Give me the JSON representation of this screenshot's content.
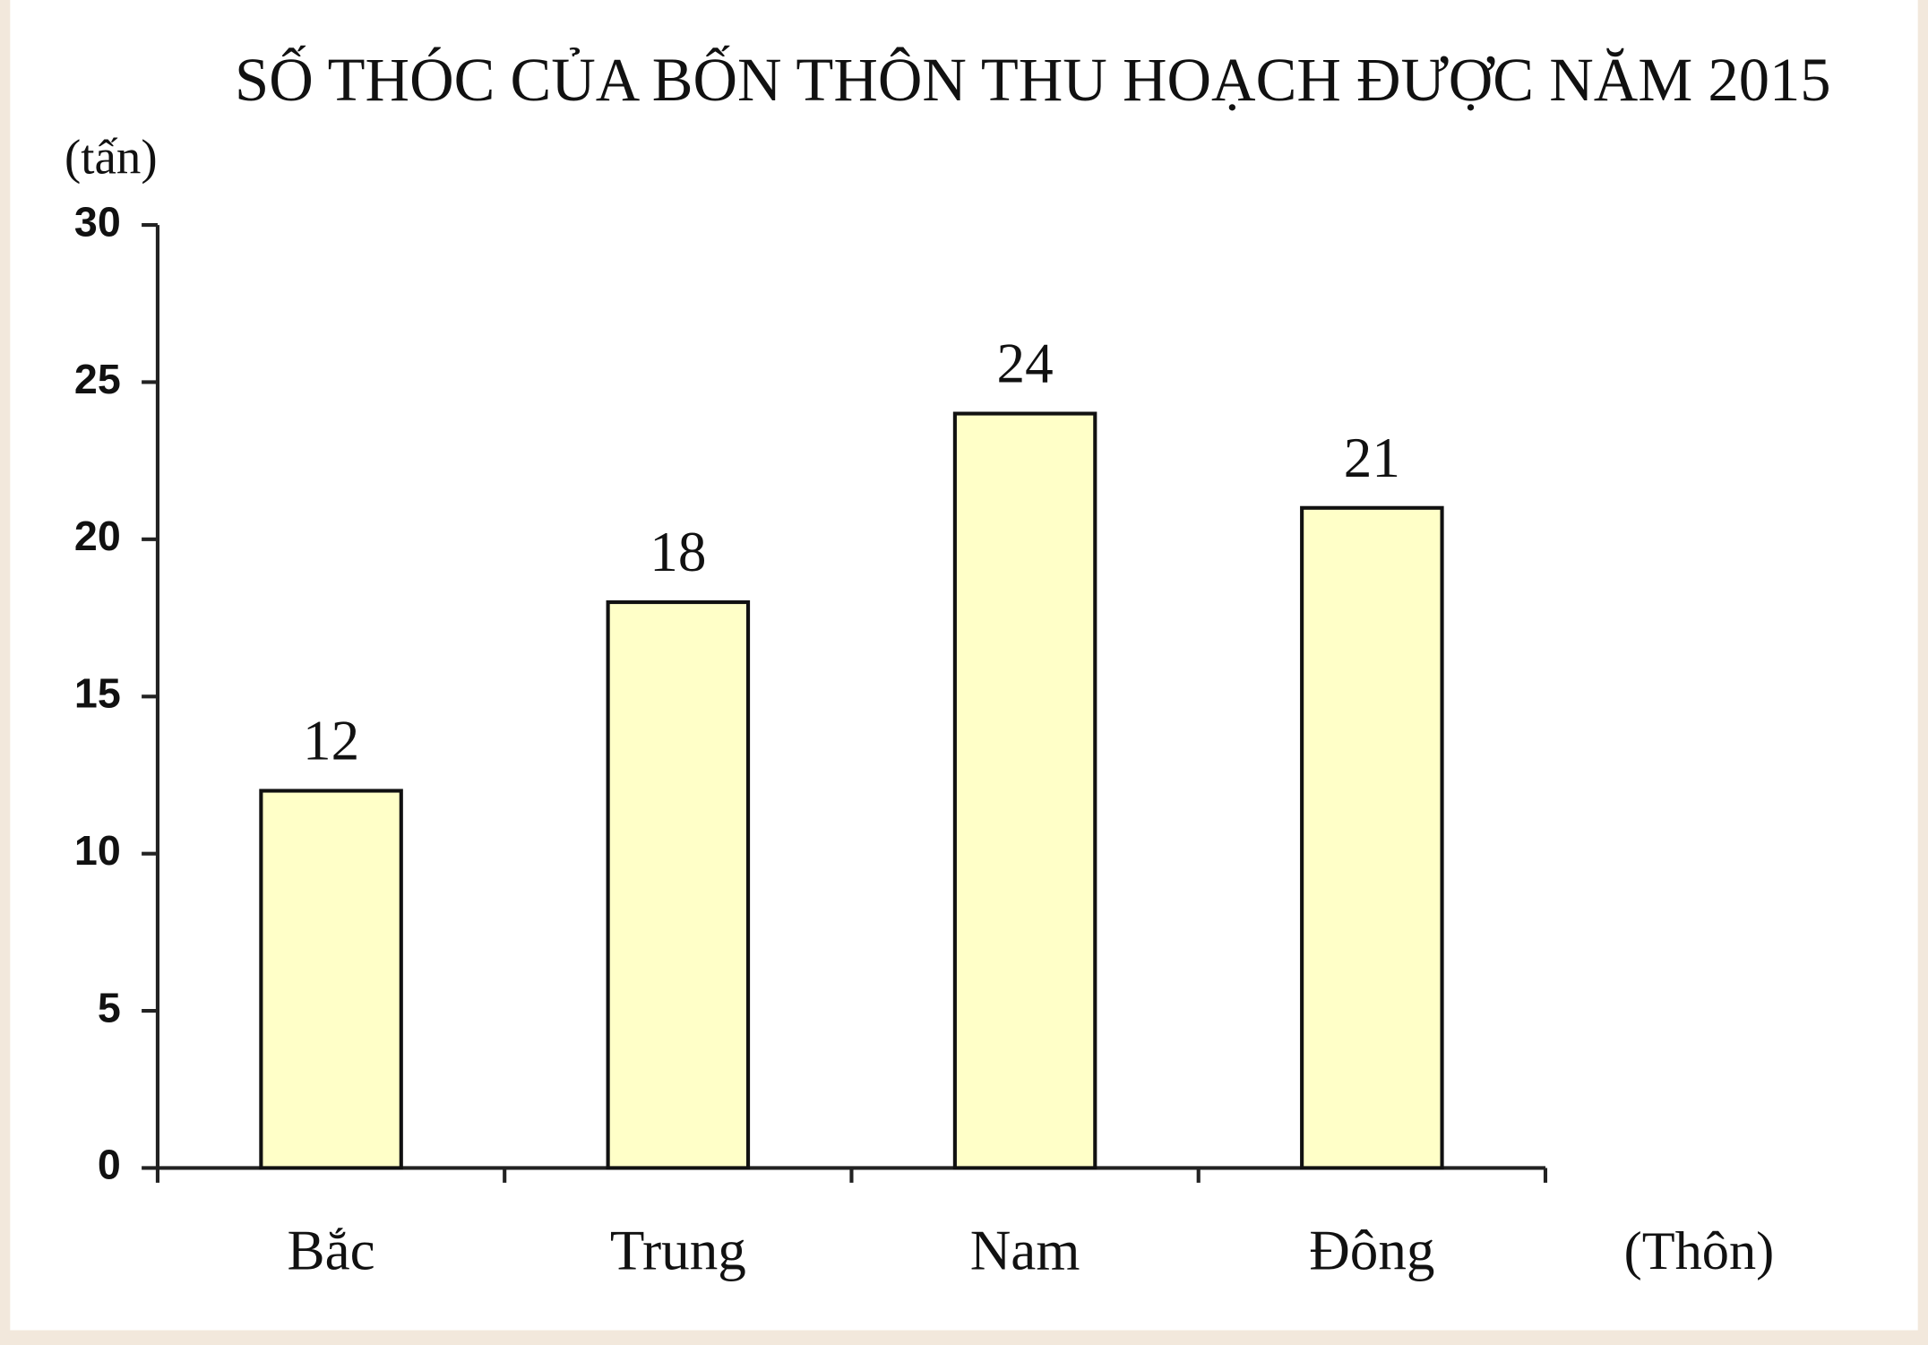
{
  "chart_data": {
    "type": "bar",
    "title": "SỐ THÓC CỦA BỐN THÔN THU HOẠCH ĐƯỢC NĂM 2015",
    "y_label": "(tấn)",
    "x_label": "(Thôn)",
    "categories": [
      "Bắc",
      "Trung",
      "Nam",
      "Đông"
    ],
    "values": [
      12,
      18,
      24,
      21
    ],
    "color": "#ffffc8",
    "ylim": [
      0,
      30
    ],
    "yticks": [
      0,
      5,
      10,
      15,
      20,
      25,
      30
    ],
    "grid": false
  }
}
